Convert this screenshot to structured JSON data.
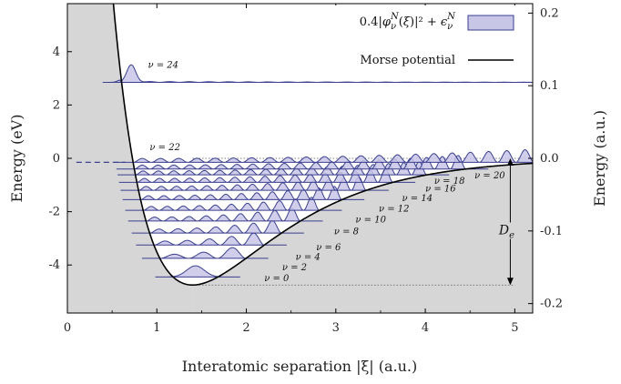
{
  "chart_data": {
    "type": "line",
    "xlabel": "Interatomic separation |ξ| (a.u.)",
    "ylabel": "Energy (eV)",
    "y2label": "Energy (a.u.)",
    "xlim": [
      0,
      5.2
    ],
    "ylim": [
      -5.8,
      5.8
    ],
    "y2lim": [
      -0.213,
      0.213
    ],
    "x_ticks": [
      0,
      1,
      2,
      3,
      4,
      5
    ],
    "x_tick_labels": [
      "0",
      "1",
      "2",
      "3",
      "4",
      "5"
    ],
    "y_ticks": [
      -4,
      -2,
      0,
      2,
      4
    ],
    "y_tick_labels": [
      "-4",
      "-2",
      "0",
      "2",
      "4"
    ],
    "y2_ticks": [
      -0.2,
      -0.1,
      0.0,
      0.1,
      0.2
    ],
    "y2_tick_labels": [
      "-0.2",
      "-0.1",
      "0.0",
      "0.1",
      "0.2"
    ],
    "legend": {
      "placement": "top-right",
      "entries": [
        {
          "label": "0.4|φνN(ξ)|² + ϵνN",
          "kind": "filled",
          "color": "#c8c6e6",
          "edge": "#3a3f8f"
        },
        {
          "label": "Morse potential",
          "kind": "line",
          "color": "#000000"
        }
      ]
    },
    "morse": {
      "De": 4.75,
      "re": 1.4,
      "a": 1.03,
      "color": "#000000"
    },
    "levels": [
      {
        "label": "ν = 0",
        "nu": 0,
        "energy": -4.45,
        "label_x": 2.2,
        "label_y": -4.6
      },
      {
        "label": "ν = 2",
        "nu": 2,
        "energy": -3.75,
        "label_x": 2.4,
        "label_y": -4.2
      },
      {
        "label": "ν = 4",
        "nu": 4,
        "energy": -3.25,
        "label_x": 2.55,
        "label_y": -3.8
      },
      {
        "label": "ν = 6",
        "nu": 6,
        "energy": -2.8,
        "label_x": 2.78,
        "label_y": -3.45
      },
      {
        "label": "ν = 8",
        "nu": 8,
        "energy": -2.35,
        "label_x": 2.98,
        "label_y": -2.85
      },
      {
        "label": "ν = 10",
        "nu": 10,
        "energy": -1.95,
        "label_x": 3.22,
        "label_y": -2.4
      },
      {
        "label": "ν = 12",
        "nu": 12,
        "energy": -1.55,
        "label_x": 3.48,
        "label_y": -2.0
      },
      {
        "label": "ν = 14",
        "nu": 14,
        "energy": -1.2,
        "label_x": 3.74,
        "label_y": -1.6
      },
      {
        "label": "ν = 16",
        "nu": 16,
        "energy": -0.9,
        "label_x": 4.0,
        "label_y": -1.25
      },
      {
        "label": "ν = 18",
        "nu": 18,
        "energy": -0.62,
        "label_x": 4.1,
        "label_y": -0.95
      },
      {
        "label": "ν = 20",
        "nu": 20,
        "energy": -0.4,
        "label_x": 4.55,
        "label_y": -0.75
      },
      {
        "label": "ν = 22",
        "nu": 22,
        "energy": -0.15,
        "label_x": 0.92,
        "label_y": 0.3
      },
      {
        "label": "ν = 24",
        "nu": 24,
        "energy": 2.85,
        "label_x": 0.9,
        "label_y": 3.4
      }
    ],
    "dissociation": {
      "label": "De",
      "x": 4.95,
      "y_top": 0.0,
      "y_bottom": -4.75,
      "label_x": 4.95,
      "label_y": -2.85
    },
    "reference_lines": [
      {
        "y": 0.0,
        "style": "dotted",
        "x_from": 1.4,
        "x_to": 5.2
      },
      {
        "y": -4.75,
        "style": "dotted",
        "x_from": 1.4,
        "x_to": 5.0
      }
    ],
    "dashed_segment": {
      "y": -0.15,
      "x_from": 0.1,
      "x_to": 0.65
    },
    "colors": {
      "shade": "#d6d6d6",
      "wave_edge": "#3a3f8f",
      "wave_fill": "#c8c6e6",
      "morse": "#000000"
    },
    "grid": false
  }
}
